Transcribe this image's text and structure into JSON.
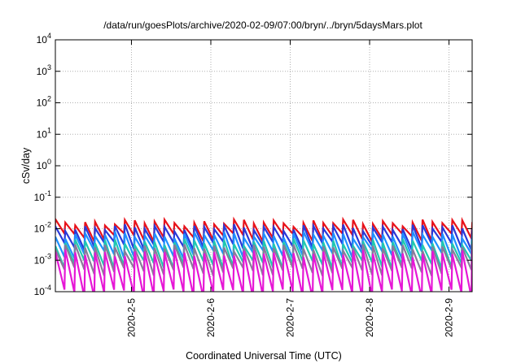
{
  "chart_data": {
    "type": "line",
    "title": "/data/run/goesPlots/archive/2020-02-09/07:00/bryn/../bryn/5daysMars.plot",
    "xlabel": "Coordinated Universal Time (UTC)",
    "ylabel": "cSv/day",
    "yscale": "log",
    "ylim": [
      0.0001,
      10000
    ],
    "ytick_labels": [
      {
        "base": "10",
        "exp": "-4"
      },
      {
        "base": "10",
        "exp": "-3"
      },
      {
        "base": "10",
        "exp": "-2"
      },
      {
        "base": "10",
        "exp": "-1"
      },
      {
        "base": "10",
        "exp": "0"
      },
      {
        "base": "10",
        "exp": "1"
      },
      {
        "base": "10",
        "exp": "2"
      },
      {
        "base": "10",
        "exp": "3"
      },
      {
        "base": "10",
        "exp": "4"
      }
    ],
    "xlim": [
      "2020-02-04 01:00",
      "2020-02-09 07:00"
    ],
    "xtick_labels": [
      "2020-2-5",
      "2020-2-6",
      "2020-2-7",
      "2020-2-8",
      "2020-2-9"
    ],
    "xtick_values": [
      "2020-02-05",
      "2020-02-06",
      "2020-02-07",
      "2020-02-08",
      "2020-02-09"
    ],
    "grid": true,
    "legend": "none",
    "sawtooth_period_hours": 3.0,
    "series": [
      {
        "color": "#e8121a",
        "peak": 0.016,
        "trough": 0.0055
      },
      {
        "color": "#2a39d8",
        "peak": 0.011,
        "trough": 0.003
      },
      {
        "color": "#1e90ff",
        "peak": 0.0065,
        "trough": 0.0016
      },
      {
        "color": "#20c8b0",
        "peak": 0.0038,
        "trough": 0.00075
      },
      {
        "color": "#8a7a9a",
        "peak": 0.0026,
        "trough": 0.00045
      },
      {
        "color": "#e617d6",
        "peak": 0.0017,
        "trough": 9e-05
      }
    ]
  }
}
